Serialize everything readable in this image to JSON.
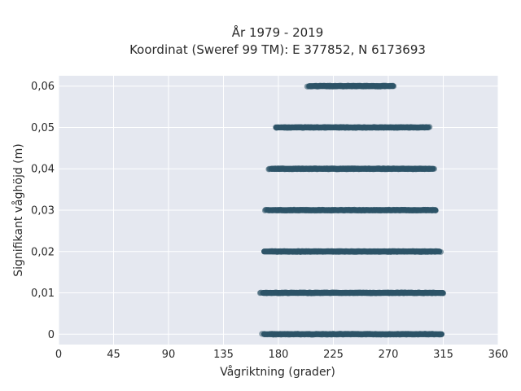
{
  "chart_data": {
    "type": "scatter",
    "title": "År 1979 - 2019",
    "subtitle": "Koordinat (Sweref 99 TM): E 377852, N 6173693",
    "xlabel": "Vågriktning (grader)",
    "ylabel": "Signifikant våghöjd (m)",
    "xlim": [
      0,
      360
    ],
    "ylim": [
      -0.0025,
      0.0625
    ],
    "xticks": [
      0,
      45,
      90,
      135,
      180,
      225,
      270,
      315,
      360
    ],
    "xtick_labels": [
      "0",
      "45",
      "90",
      "135",
      "180",
      "225",
      "270",
      "315",
      "360"
    ],
    "yticks": [
      0,
      0.01,
      0.02,
      0.03,
      0.04,
      0.05,
      0.06
    ],
    "ytick_labels": [
      "0",
      "0,01",
      "0,02",
      "0,03",
      "0,04",
      "0,05",
      "0,06"
    ],
    "grid": true,
    "colors": {
      "background": "#e5e8f0",
      "grid": "#ffffff",
      "marker": "#2e5468"
    },
    "bands": [
      {
        "y": 0.0,
        "x_min": 166,
        "x_max": 316
      },
      {
        "y": 0.01,
        "x_min": 165,
        "x_max": 317
      },
      {
        "y": 0.02,
        "x_min": 166,
        "x_max": 314
      },
      {
        "y": 0.03,
        "x_min": 169,
        "x_max": 311
      },
      {
        "y": 0.04,
        "x_min": 172,
        "x_max": 309
      },
      {
        "y": 0.05,
        "x_min": 176,
        "x_max": 305
      },
      {
        "y": 0.06,
        "x_min": 203,
        "x_max": 276
      }
    ]
  }
}
